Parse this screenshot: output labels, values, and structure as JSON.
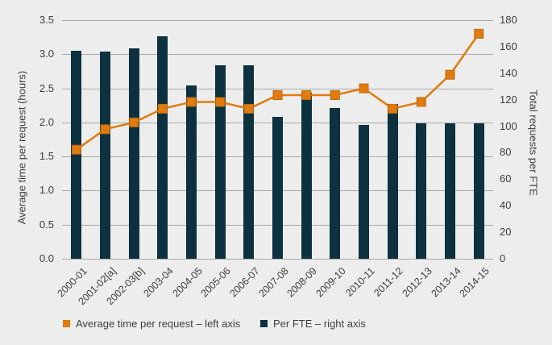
{
  "colors": {
    "background": "#EDEDED",
    "gridline": "#ABABAB",
    "text": "#3E3E3E",
    "orange": "#DE7C0F",
    "orange_border": "#C1690A",
    "navy": "#0E3140"
  },
  "chart_data": {
    "type": "bar+line",
    "title": "",
    "categories": [
      "2000-01",
      "2001-02[a]",
      "2002-03[b]",
      "2003-04",
      "2004-05",
      "2005-06",
      "2006-07",
      "2007-08",
      "2008-09",
      "2009-10",
      "2010-11",
      "2011-12",
      "2012-13",
      "2013-14",
      "2014-15"
    ],
    "series": [
      {
        "name": "Average time per request – left axis",
        "type": "line",
        "axis": "left",
        "color": "#DE7C0F",
        "marker": "square",
        "values": [
          1.6,
          1.9,
          2.0,
          2.2,
          2.3,
          2.3,
          2.2,
          2.4,
          2.4,
          2.4,
          2.5,
          2.2,
          2.3,
          2.7,
          3.3
        ]
      },
      {
        "name": "Per FTE – right axis",
        "type": "bar",
        "axis": "right",
        "color": "#0E3140",
        "values": [
          157,
          156,
          159,
          168,
          131,
          146,
          146,
          107,
          125,
          114,
          101,
          117,
          102,
          102,
          102
        ]
      }
    ],
    "left_axis": {
      "label": "Average time per request (hours)",
      "min": 0,
      "max": 3.5,
      "step": 0.5,
      "ticks": [
        "0.0",
        "0.5",
        "1.0",
        "1.5",
        "2.0",
        "2.5",
        "3.0",
        "3.5"
      ]
    },
    "right_axis": {
      "label": "Total requests per FTE",
      "min": 0,
      "max": 180,
      "step": 20,
      "ticks": [
        "0",
        "20",
        "40",
        "60",
        "80",
        "100",
        "120",
        "140",
        "160",
        "180"
      ]
    },
    "grid": true,
    "legend_position": "bottom"
  },
  "legend": {
    "items": [
      {
        "label": "Average time per request – left axis",
        "color": "#DE7C0F"
      },
      {
        "label": "Per FTE – right axis",
        "color": "#0E3140"
      }
    ]
  }
}
